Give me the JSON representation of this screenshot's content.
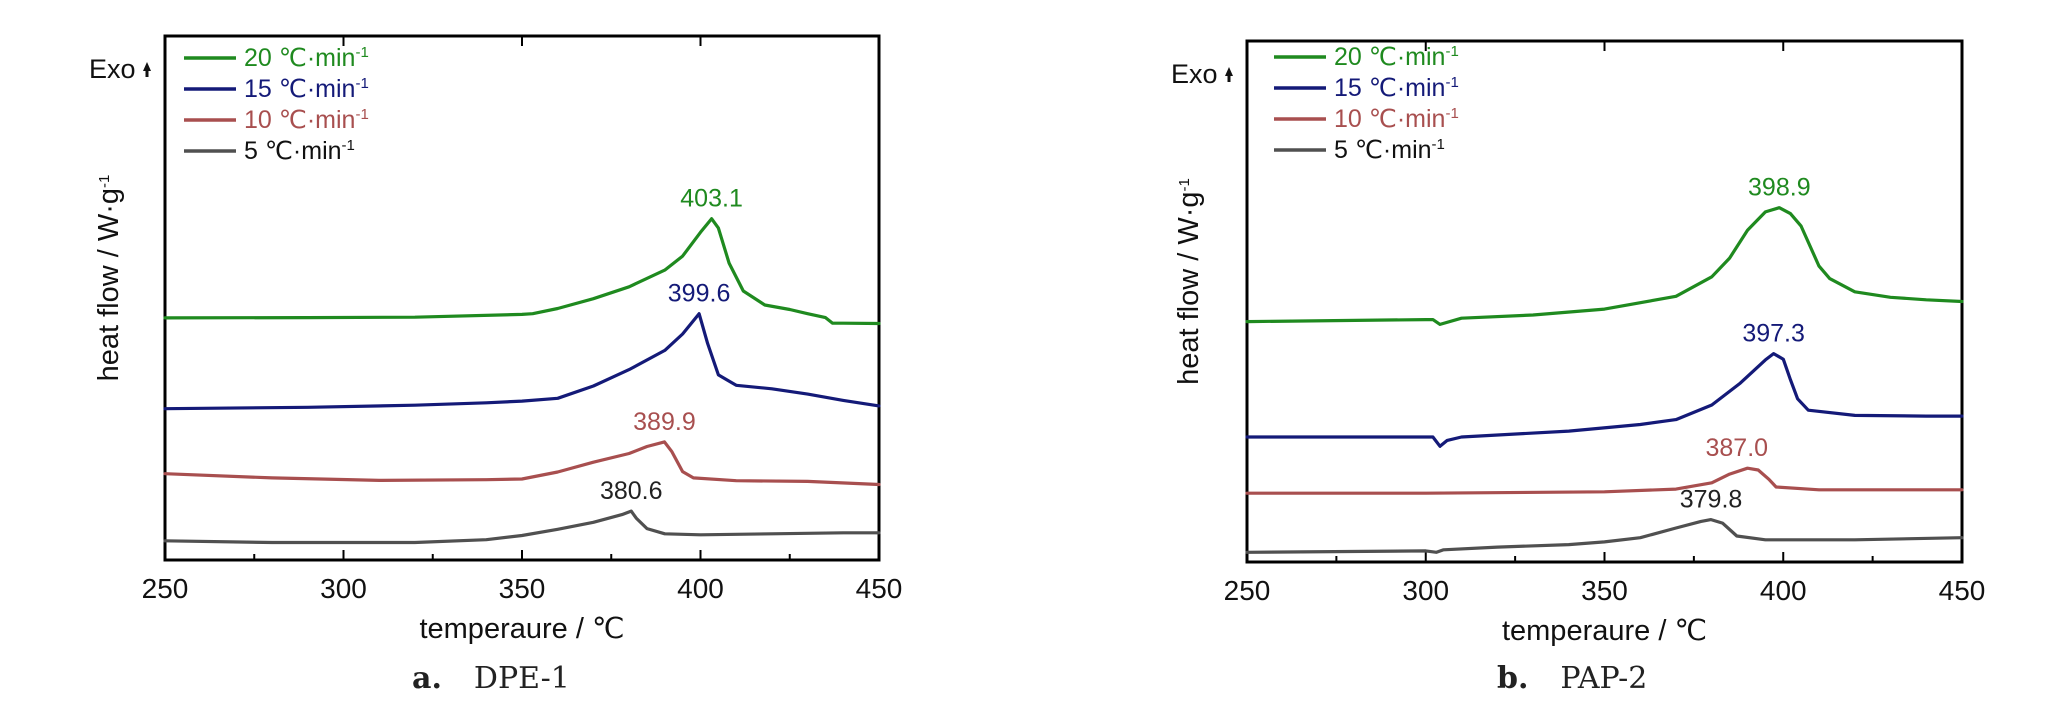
{
  "colors": {
    "20": "#1f8a1f",
    "15": "#141a78",
    "10": "#a84f4f",
    "5": "#505050",
    "axis": "#000000"
  },
  "chart_data": [
    {
      "type": "line",
      "panel_letter": "a.",
      "panel_name": "DPE-1",
      "xlabel": "temperaure / ℃",
      "ylabel": "heat flow / W·g⁻¹",
      "exo_label": "Exo",
      "xlim": [
        250,
        450
      ],
      "x_ticks": [
        "250",
        "300",
        "350",
        "400",
        "450"
      ],
      "yaxis_numeric": false,
      "legend_position": "top-left",
      "legend": [
        "20 ℃·min⁻¹",
        "15 ℃·min⁻¹",
        "10 ℃·min⁻¹",
        "5 ℃·min⁻¹"
      ],
      "series": [
        {
          "key": "20",
          "peak_x": 403.1,
          "peak_label": "403.1",
          "points": [
            [
              250,
              0.807
            ],
            [
              290,
              0.806
            ],
            [
              320,
              0.805
            ],
            [
              350,
              0.797
            ],
            [
              353,
              0.795
            ],
            [
              360,
              0.78
            ],
            [
              370,
              0.752
            ],
            [
              380,
              0.718
            ],
            [
              390,
              0.67
            ],
            [
              395,
              0.63
            ],
            [
              400,
              0.562
            ],
            [
              403.1,
              0.523
            ],
            [
              405,
              0.55
            ],
            [
              408,
              0.65
            ],
            [
              412,
              0.73
            ],
            [
              418,
              0.77
            ],
            [
              425,
              0.783
            ],
            [
              430,
              0.795
            ],
            [
              435,
              0.806
            ],
            [
              437,
              0.822
            ],
            [
              440,
              0.822
            ],
            [
              450,
              0.823
            ]
          ]
        },
        {
          "key": "15",
          "peak_x": 399.6,
          "peak_label": "399.6",
          "points": [
            [
              250,
              1.067
            ],
            [
              290,
              1.063
            ],
            [
              320,
              1.057
            ],
            [
              340,
              1.05
            ],
            [
              350,
              1.045
            ],
            [
              360,
              1.037
            ],
            [
              370,
              1.002
            ],
            [
              380,
              0.955
            ],
            [
              390,
              0.9
            ],
            [
              395,
              0.853
            ],
            [
              399.6,
              0.795
            ],
            [
              402,
              0.88
            ],
            [
              405,
              0.97
            ],
            [
              410,
              1.0
            ],
            [
              420,
              1.01
            ],
            [
              430,
              1.025
            ],
            [
              440,
              1.043
            ],
            [
              450,
              1.059
            ]
          ]
        },
        {
          "key": "10",
          "peak_x": 389.9,
          "peak_label": "389.9",
          "points": [
            [
              250,
              1.253
            ],
            [
              280,
              1.265
            ],
            [
              310,
              1.272
            ],
            [
              340,
              1.27
            ],
            [
              350,
              1.268
            ],
            [
              360,
              1.248
            ],
            [
              370,
              1.22
            ],
            [
              380,
              1.195
            ],
            [
              385,
              1.175
            ],
            [
              389.9,
              1.162
            ],
            [
              392,
              1.19
            ],
            [
              395,
              1.247
            ],
            [
              398,
              1.265
            ],
            [
              410,
              1.273
            ],
            [
              430,
              1.275
            ],
            [
              450,
              1.284
            ]
          ]
        },
        {
          "key": "5",
          "peak_x": 380.6,
          "peak_label": "380.6",
          "points": [
            [
              250,
              1.445
            ],
            [
              280,
              1.45
            ],
            [
              320,
              1.45
            ],
            [
              340,
              1.442
            ],
            [
              350,
              1.43
            ],
            [
              360,
              1.412
            ],
            [
              370,
              1.392
            ],
            [
              378,
              1.37
            ],
            [
              380.6,
              1.36
            ],
            [
              382,
              1.38
            ],
            [
              385,
              1.41
            ],
            [
              390,
              1.425
            ],
            [
              400,
              1.428
            ],
            [
              420,
              1.425
            ],
            [
              440,
              1.422
            ],
            [
              450,
              1.422
            ]
          ]
        }
      ]
    },
    {
      "type": "line",
      "panel_letter": "b.",
      "panel_name": "PAP-2",
      "xlabel": "temperaure / ℃",
      "ylabel": "heat flow / W·g⁻¹",
      "exo_label": "Exo",
      "xlim": [
        250,
        450
      ],
      "x_ticks": [
        "250",
        "300",
        "350",
        "400",
        "450"
      ],
      "yaxis_numeric": false,
      "legend_position": "top-left",
      "legend": [
        "20 ℃·min⁻¹",
        "15 ℃·min⁻¹",
        "10 ℃·min⁻¹",
        "5 ℃·min⁻¹"
      ],
      "series": [
        {
          "key": "20",
          "peak_x": 398.9,
          "peak_label": "398.9",
          "points": [
            [
              250,
              0.808
            ],
            [
              300,
              0.802
            ],
            [
              302,
              0.802
            ],
            [
              304,
              0.816
            ],
            [
              310,
              0.798
            ],
            [
              330,
              0.789
            ],
            [
              350,
              0.772
            ],
            [
              370,
              0.735
            ],
            [
              380,
              0.679
            ],
            [
              385,
              0.625
            ],
            [
              390,
              0.545
            ],
            [
              395,
              0.492
            ],
            [
              398.9,
              0.48
            ],
            [
              402,
              0.497
            ],
            [
              405,
              0.533
            ],
            [
              410,
              0.648
            ],
            [
              413,
              0.684
            ],
            [
              420,
              0.722
            ],
            [
              430,
              0.738
            ],
            [
              440,
              0.745
            ],
            [
              450,
              0.75
            ]
          ]
        },
        {
          "key": "15",
          "peak_x": 397.3,
          "peak_label": "397.3",
          "points": [
            [
              250,
              1.14
            ],
            [
              300,
              1.14
            ],
            [
              302,
              1.14
            ],
            [
              304,
              1.167
            ],
            [
              306,
              1.15
            ],
            [
              310,
              1.14
            ],
            [
              340,
              1.123
            ],
            [
              360,
              1.104
            ],
            [
              370,
              1.09
            ],
            [
              380,
              1.048
            ],
            [
              388,
              0.985
            ],
            [
              395,
              0.918
            ],
            [
              397.3,
              0.9
            ],
            [
              400,
              0.916
            ],
            [
              402,
              0.975
            ],
            [
              404,
              1.03
            ],
            [
              407,
              1.063
            ],
            [
              420,
              1.078
            ],
            [
              440,
              1.08
            ],
            [
              450,
              1.08
            ]
          ]
        },
        {
          "key": "10",
          "peak_x": 387.0,
          "peak_label": "387.0",
          "points": [
            [
              250,
              1.302
            ],
            [
              300,
              1.302
            ],
            [
              350,
              1.298
            ],
            [
              370,
              1.29
            ],
            [
              380,
              1.272
            ],
            [
              385,
              1.247
            ],
            [
              390,
              1.23
            ],
            [
              393,
              1.235
            ],
            [
              396,
              1.262
            ],
            [
              398,
              1.284
            ],
            [
              410,
              1.292
            ],
            [
              430,
              1.292
            ],
            [
              450,
              1.292
            ]
          ]
        },
        {
          "key": "5",
          "peak_x": 379.8,
          "peak_label": "379.8",
          "points": [
            [
              250,
              1.472
            ],
            [
              300,
              1.468
            ],
            [
              303,
              1.472
            ],
            [
              305,
              1.465
            ],
            [
              320,
              1.457
            ],
            [
              340,
              1.45
            ],
            [
              350,
              1.442
            ],
            [
              360,
              1.43
            ],
            [
              370,
              1.402
            ],
            [
              377,
              1.383
            ],
            [
              379.8,
              1.378
            ],
            [
              383,
              1.388
            ],
            [
              387,
              1.425
            ],
            [
              395,
              1.436
            ],
            [
              420,
              1.436
            ],
            [
              450,
              1.43
            ]
          ]
        }
      ]
    }
  ]
}
